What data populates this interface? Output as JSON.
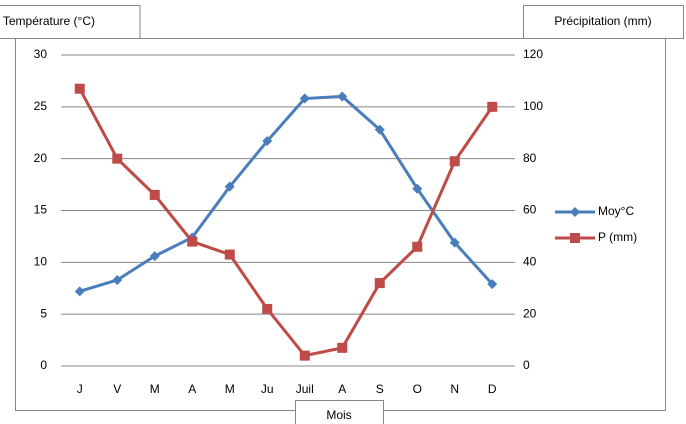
{
  "chart_data": {
    "type": "line",
    "ylabel": "Température (°C)",
    "y2label": "Précipitation (mm)",
    "xlabel": "Mois",
    "categories": [
      "J",
      "V",
      "M",
      "A",
      "M",
      "Ju",
      "Juil",
      "A",
      "S",
      "O",
      "N",
      "D"
    ],
    "series": [
      {
        "name": "Moy°C",
        "color": "#4a7ebb",
        "marker": "diamond",
        "values": [
          7.2,
          8.3,
          10.6,
          12.4,
          17.3,
          21.7,
          25.8,
          26.0,
          22.8,
          17.1,
          11.9,
          7.9
        ]
      },
      {
        "name": "P (mm)",
        "color": "#be4b48",
        "marker": "square",
        "axis": "y2",
        "values": [
          107,
          80,
          66,
          48,
          43,
          22,
          4,
          7,
          32,
          46,
          79,
          100
        ]
      }
    ],
    "ylim": [
      0,
      30
    ],
    "yticks": [
      0,
      5,
      10,
      15,
      20,
      25,
      30
    ],
    "y2lim": [
      0,
      120
    ],
    "y2ticks": [
      0,
      20,
      40,
      60,
      80,
      100,
      120
    ],
    "grid": true,
    "legend": "right"
  }
}
